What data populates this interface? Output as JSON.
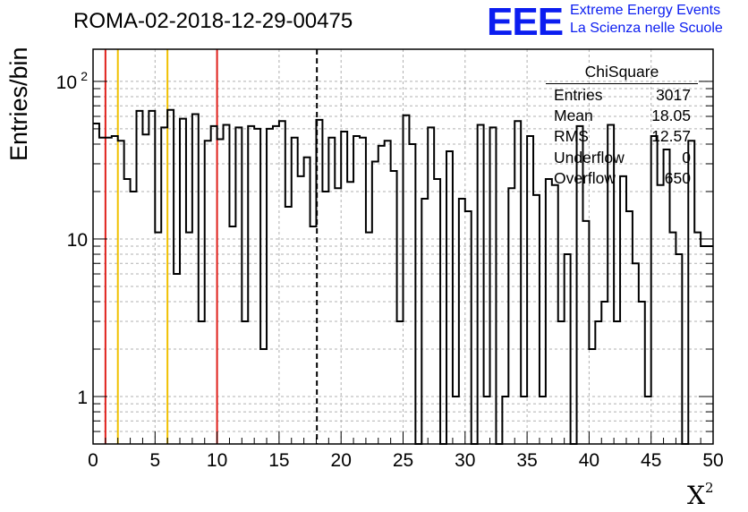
{
  "chart_data": {
    "type": "bar",
    "title": "ROMA-02-2018-12-29-00475",
    "xlabel": "X",
    "xlabel_sup": "2",
    "ylabel": "Entries/bin",
    "yscale": "log",
    "xlim": [
      0,
      50
    ],
    "ylim": [
      0.5,
      160
    ],
    "bin_width": 0.5,
    "x_ticks": [
      "0",
      "5",
      "10",
      "15",
      "20",
      "25",
      "30",
      "35",
      "40",
      "45",
      "50"
    ],
    "y_ticks": [
      {
        "value": 1,
        "label": "1"
      },
      {
        "value": 10,
        "label": "10"
      },
      {
        "value": 100,
        "label": "10",
        "exp": "2"
      }
    ],
    "grid": true,
    "values": [
      54,
      44,
      44,
      45,
      42,
      24,
      20,
      65,
      46,
      65,
      11,
      51,
      66,
      6,
      58,
      11,
      62,
      3,
      42,
      52,
      43,
      53,
      12,
      51,
      3,
      52,
      50,
      2,
      50,
      52,
      56,
      16,
      44,
      25,
      33,
      12,
      57,
      20,
      44,
      21,
      48,
      23,
      45,
      44,
      11,
      31,
      39,
      42,
      27,
      3,
      61,
      40,
      0.1,
      18,
      51,
      24,
      0.1,
      36,
      1,
      18,
      15,
      0,
      53,
      1,
      51,
      0.3,
      1,
      21,
      56,
      1,
      45,
      19,
      1,
      24,
      22,
      3,
      8,
      0.3,
      52,
      13,
      2,
      3,
      4,
      53,
      3,
      25,
      15,
      7,
      4,
      1,
      45,
      22,
      37,
      11,
      8,
      0.4,
      42,
      11,
      9,
      9
    ],
    "vertical_lines": [
      {
        "x": 1,
        "color": "#e0201b",
        "style": "solid"
      },
      {
        "x": 2,
        "color": "#f0c000",
        "style": "solid"
      },
      {
        "x": 6,
        "color": "#f0c000",
        "style": "solid"
      },
      {
        "x": 10,
        "color": "#e0201b",
        "style": "solid"
      },
      {
        "x": 18.05,
        "color": "#000000",
        "style": "dashed"
      }
    ],
    "stats": {
      "title": "ChiSquare",
      "rows": [
        {
          "label": "Entries",
          "value": "3017"
        },
        {
          "label": "Mean",
          "value": "18.05"
        },
        {
          "label": "RMS",
          "value": "12.57"
        },
        {
          "label": "Underflow",
          "value": "0"
        },
        {
          "label": "Overflow",
          "value": "650"
        }
      ]
    }
  },
  "logo": {
    "mark": "EEE",
    "line1": "Extreme Energy Events",
    "line2": "La Scienza nelle Scuole",
    "color": "#0b1df0"
  }
}
